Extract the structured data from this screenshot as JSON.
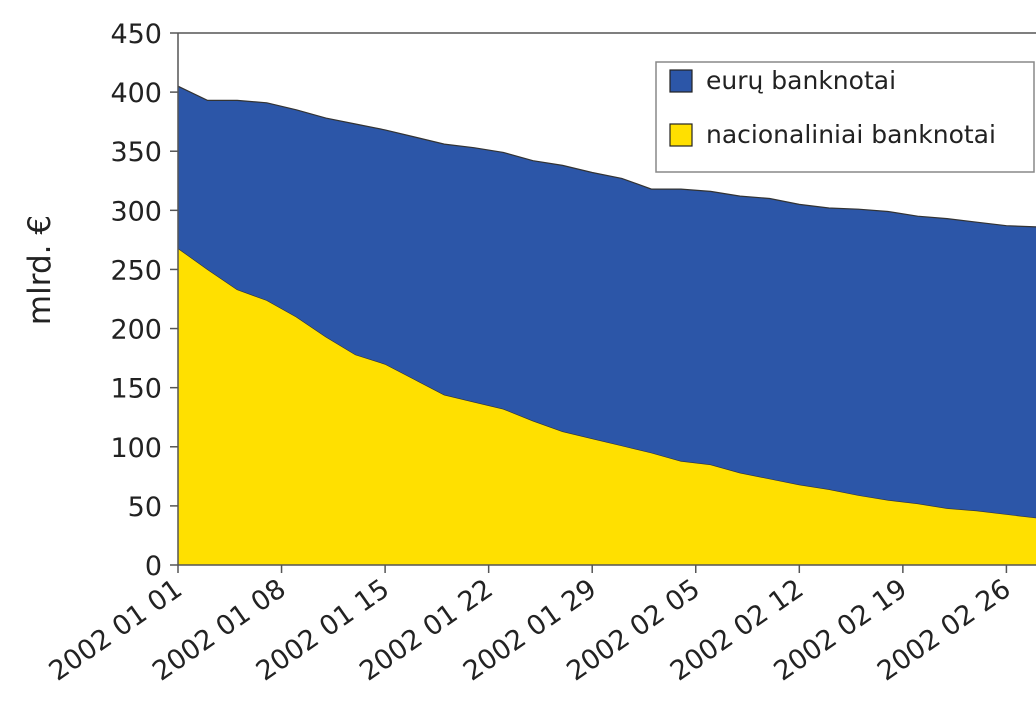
{
  "chart_data": {
    "type": "area",
    "stacked": true,
    "title": "",
    "xlabel": "",
    "ylabel": "mlrd. €",
    "ylim": [
      0,
      450
    ],
    "yticks": [
      0,
      50,
      100,
      150,
      200,
      250,
      300,
      350,
      400,
      450
    ],
    "xlim": [
      "2002 01 01",
      "2002 02 28"
    ],
    "xtick_labels": [
      "2002 01 01",
      "2002 01 08",
      "2002 01 15",
      "2002 01 22",
      "2002 01 29",
      "2002 02 05",
      "2002 02 12",
      "2002 02 19",
      "2002 02 26"
    ],
    "grid": false,
    "legend_position": "top-right",
    "x": [
      "2002 01 01",
      "2002 01 03",
      "2002 01 05",
      "2002 01 07",
      "2002 01 09",
      "2002 01 11",
      "2002 01 13",
      "2002 01 15",
      "2002 01 17",
      "2002 01 19",
      "2002 01 21",
      "2002 01 23",
      "2002 01 25",
      "2002 01 27",
      "2002 01 29",
      "2002 01 31",
      "2002 02 02",
      "2002 02 04",
      "2002 02 06",
      "2002 02 08",
      "2002 02 10",
      "2002 02 12",
      "2002 02 14",
      "2002 02 16",
      "2002 02 18",
      "2002 02 20",
      "2002 02 22",
      "2002 02 24",
      "2002 02 26",
      "2002 02 28"
    ],
    "series": [
      {
        "name": "nacionaliniai banknotai",
        "color": "#FFE000",
        "values": [
          268,
          250,
          233,
          224,
          210,
          193,
          178,
          170,
          157,
          144,
          138,
          132,
          122,
          113,
          107,
          101,
          95,
          88,
          85,
          78,
          73,
          68,
          64,
          59,
          55,
          52,
          48,
          46,
          43,
          40
        ]
      },
      {
        "name": "eurų banknotai",
        "color": "#2C56A8",
        "values": [
          137,
          143,
          160,
          167,
          175,
          185,
          195,
          198,
          205,
          212,
          215,
          217,
          220,
          225,
          225,
          226,
          223,
          230,
          231,
          234,
          237,
          237,
          238,
          242,
          244,
          243,
          245,
          244,
          244,
          246
        ]
      }
    ]
  }
}
